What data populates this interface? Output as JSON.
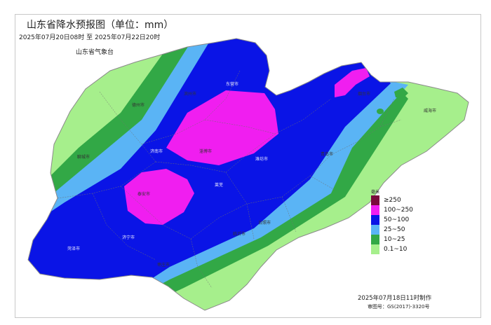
{
  "header": {
    "title": "山东省降水预报图（单位：mm）",
    "period": "2025年07月20日08时  至  2025年07月22日20时",
    "issuer": "山东省气象台"
  },
  "footer": {
    "made_at": "2025年07月18日11时制作",
    "review_no": "审图号：GS(2017)-3320号"
  },
  "legend": {
    "unit": "毫米",
    "items": [
      {
        "label": "≥250",
        "color": "#7a0a3c"
      },
      {
        "label": "100~250",
        "color": "#f01ef0"
      },
      {
        "label": "50~100",
        "color": "#0a14e6"
      },
      {
        "label": "25~50",
        "color": "#5ab4f5"
      },
      {
        "label": "10~25",
        "color": "#32a846"
      },
      {
        "label": "0.1~10",
        "color": "#a6ef8c"
      }
    ]
  },
  "cities": {
    "dongying": "东营市",
    "dezhou": "德州市",
    "binzhou": "滨州市",
    "liaocheng": "聊城市",
    "jinan": "济南市",
    "zibo": "淄博市",
    "weifang": "潍坊市",
    "taian": "泰安市",
    "jining": "济宁市",
    "heze": "菏泽市",
    "laiwu": "莱芜",
    "linyi": "临沂市",
    "rizhao": "日照市",
    "zaozhuang": "枣庄市",
    "qingdao": "青岛市",
    "yantai": "烟台市",
    "weihai": "威海市"
  }
}
